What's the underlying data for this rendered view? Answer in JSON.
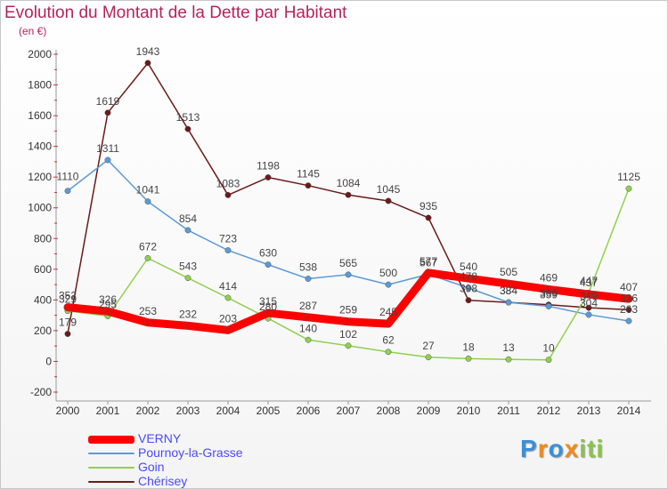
{
  "chart_data": {
    "type": "line",
    "title": "Evolution du Montant de la Dette par Habitant",
    "unit": "(en €)",
    "x": [
      "2000",
      "2001",
      "2002",
      "2003",
      "2004",
      "2005",
      "2006",
      "2007",
      "2008",
      "2009",
      "2010",
      "2011",
      "2012",
      "2013",
      "2014"
    ],
    "ylim": [
      -200,
      2000
    ],
    "yticks": [
      -200,
      0,
      200,
      400,
      600,
      800,
      1000,
      1200,
      1400,
      1600,
      1800,
      2000
    ],
    "grid": false,
    "legend_position": "bottom-left",
    "series": [
      {
        "name": "VERNY",
        "color": "#ff0000",
        "values": [
          352,
          326,
          253,
          232,
          203,
          315,
          287,
          259,
          245,
          577,
          540,
          505,
          469,
          437,
          407
        ]
      },
      {
        "name": "Pournoy-la-Grasse",
        "color": "#5b9bd5",
        "values": [
          1110,
          1311,
          1041,
          854,
          723,
          630,
          538,
          565,
          500,
          567,
          478,
          384,
          359,
          304,
          263
        ]
      },
      {
        "name": "Goin",
        "color": "#90d050",
        "values": [
          329,
          295,
          672,
          543,
          414,
          280,
          140,
          102,
          62,
          27,
          18,
          13,
          10,
          447,
          1125
        ]
      },
      {
        "name": "Chérisey",
        "color": "#6b1a1a",
        "values": [
          179,
          1619,
          1943,
          1513,
          1083,
          1198,
          1145,
          1084,
          1045,
          935,
          398,
          384,
          369,
          349,
          336
        ]
      }
    ]
  },
  "brand": {
    "letters": [
      "P",
      "r",
      "o",
      "x",
      "i",
      "t",
      "i"
    ],
    "colors": [
      "#3a8fd8",
      "#f08a1c",
      "#3a8fd8",
      "#f08a1c",
      "#8bc34a",
      "#8bc34a",
      "#8bc34a"
    ]
  }
}
